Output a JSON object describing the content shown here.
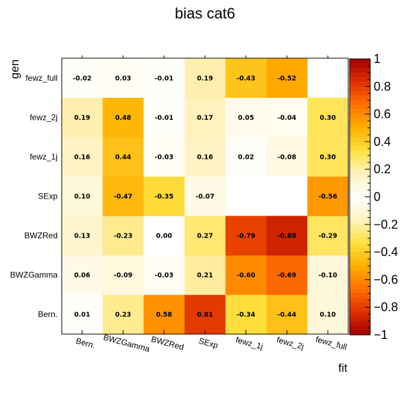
{
  "chart_data": {
    "type": "heatmap",
    "title": "bias cat6",
    "xlabel": "fit",
    "ylabel": "gen",
    "x_categories": [
      "Bern.",
      "BWZGamma",
      "BWZRed",
      "SExp",
      "fewz_1j",
      "fewz_2j",
      "fewz_full"
    ],
    "y_categories": [
      "Bern.",
      "BWZGamma",
      "BWZRed",
      "SExp",
      "fewz_1j",
      "fewz_2j",
      "fewz_full"
    ],
    "values": [
      [
        0.01,
        0.23,
        0.58,
        0.81,
        -0.34,
        -0.44,
        0.1
      ],
      [
        0.06,
        -0.09,
        -0.03,
        0.21,
        -0.6,
        -0.69,
        -0.1
      ],
      [
        0.13,
        -0.23,
        0.0,
        0.27,
        -0.79,
        -0.88,
        -0.29
      ],
      [
        0.1,
        -0.47,
        -0.35,
        -0.07,
        null,
        null,
        -0.56
      ],
      [
        0.16,
        0.44,
        -0.03,
        0.16,
        0.02,
        -0.08,
        0.3
      ],
      [
        0.19,
        0.48,
        -0.01,
        0.17,
        0.05,
        -0.04,
        0.3
      ],
      [
        -0.02,
        0.03,
        -0.01,
        0.19,
        -0.43,
        -0.52,
        null
      ]
    ],
    "value_labels": [
      [
        "0.01",
        "0.23",
        "0.58",
        "0.81",
        "-0.34",
        "-0.44",
        "0.10"
      ],
      [
        "0.06",
        "-0.09",
        "-0.03",
        "0.21",
        "-0.60",
        "-0.69",
        "-0.10"
      ],
      [
        "0.13",
        "-0.23",
        "0.00",
        "0.27",
        "-0.79",
        "-0.88",
        "-0.29"
      ],
      [
        "0.10",
        "-0.47",
        "-0.35",
        "-0.07",
        "",
        "",
        "-0.56"
      ],
      [
        "0.16",
        "0.44",
        "-0.03",
        "0.16",
        "0.02",
        "-0.08",
        "0.30"
      ],
      [
        "0.19",
        "0.48",
        "-0.01",
        "0.17",
        "0.05",
        "-0.04",
        "0.30"
      ],
      [
        "-0.02",
        "0.03",
        "-0.01",
        "0.19",
        "-0.43",
        "-0.52",
        ""
      ]
    ],
    "z_range": [
      -1,
      1
    ],
    "z_ticks": [
      1,
      0.8,
      0.6,
      0.4,
      0.2,
      0,
      -0.2,
      -0.4,
      -0.6,
      -0.8,
      -1
    ],
    "z_tick_labels": [
      "1",
      "0.8",
      "0.6",
      "0.4",
      "0.2",
      "0",
      "−0.2",
      "−0.4",
      "−0.6",
      "−0.8",
      "−1"
    ],
    "colormap": [
      "#ffffff",
      "#fff2c0",
      "#ffe040",
      "#ffb000",
      "#ff7000",
      "#e03000",
      "#a00000"
    ],
    "grid": false,
    "colorbar": "right"
  }
}
